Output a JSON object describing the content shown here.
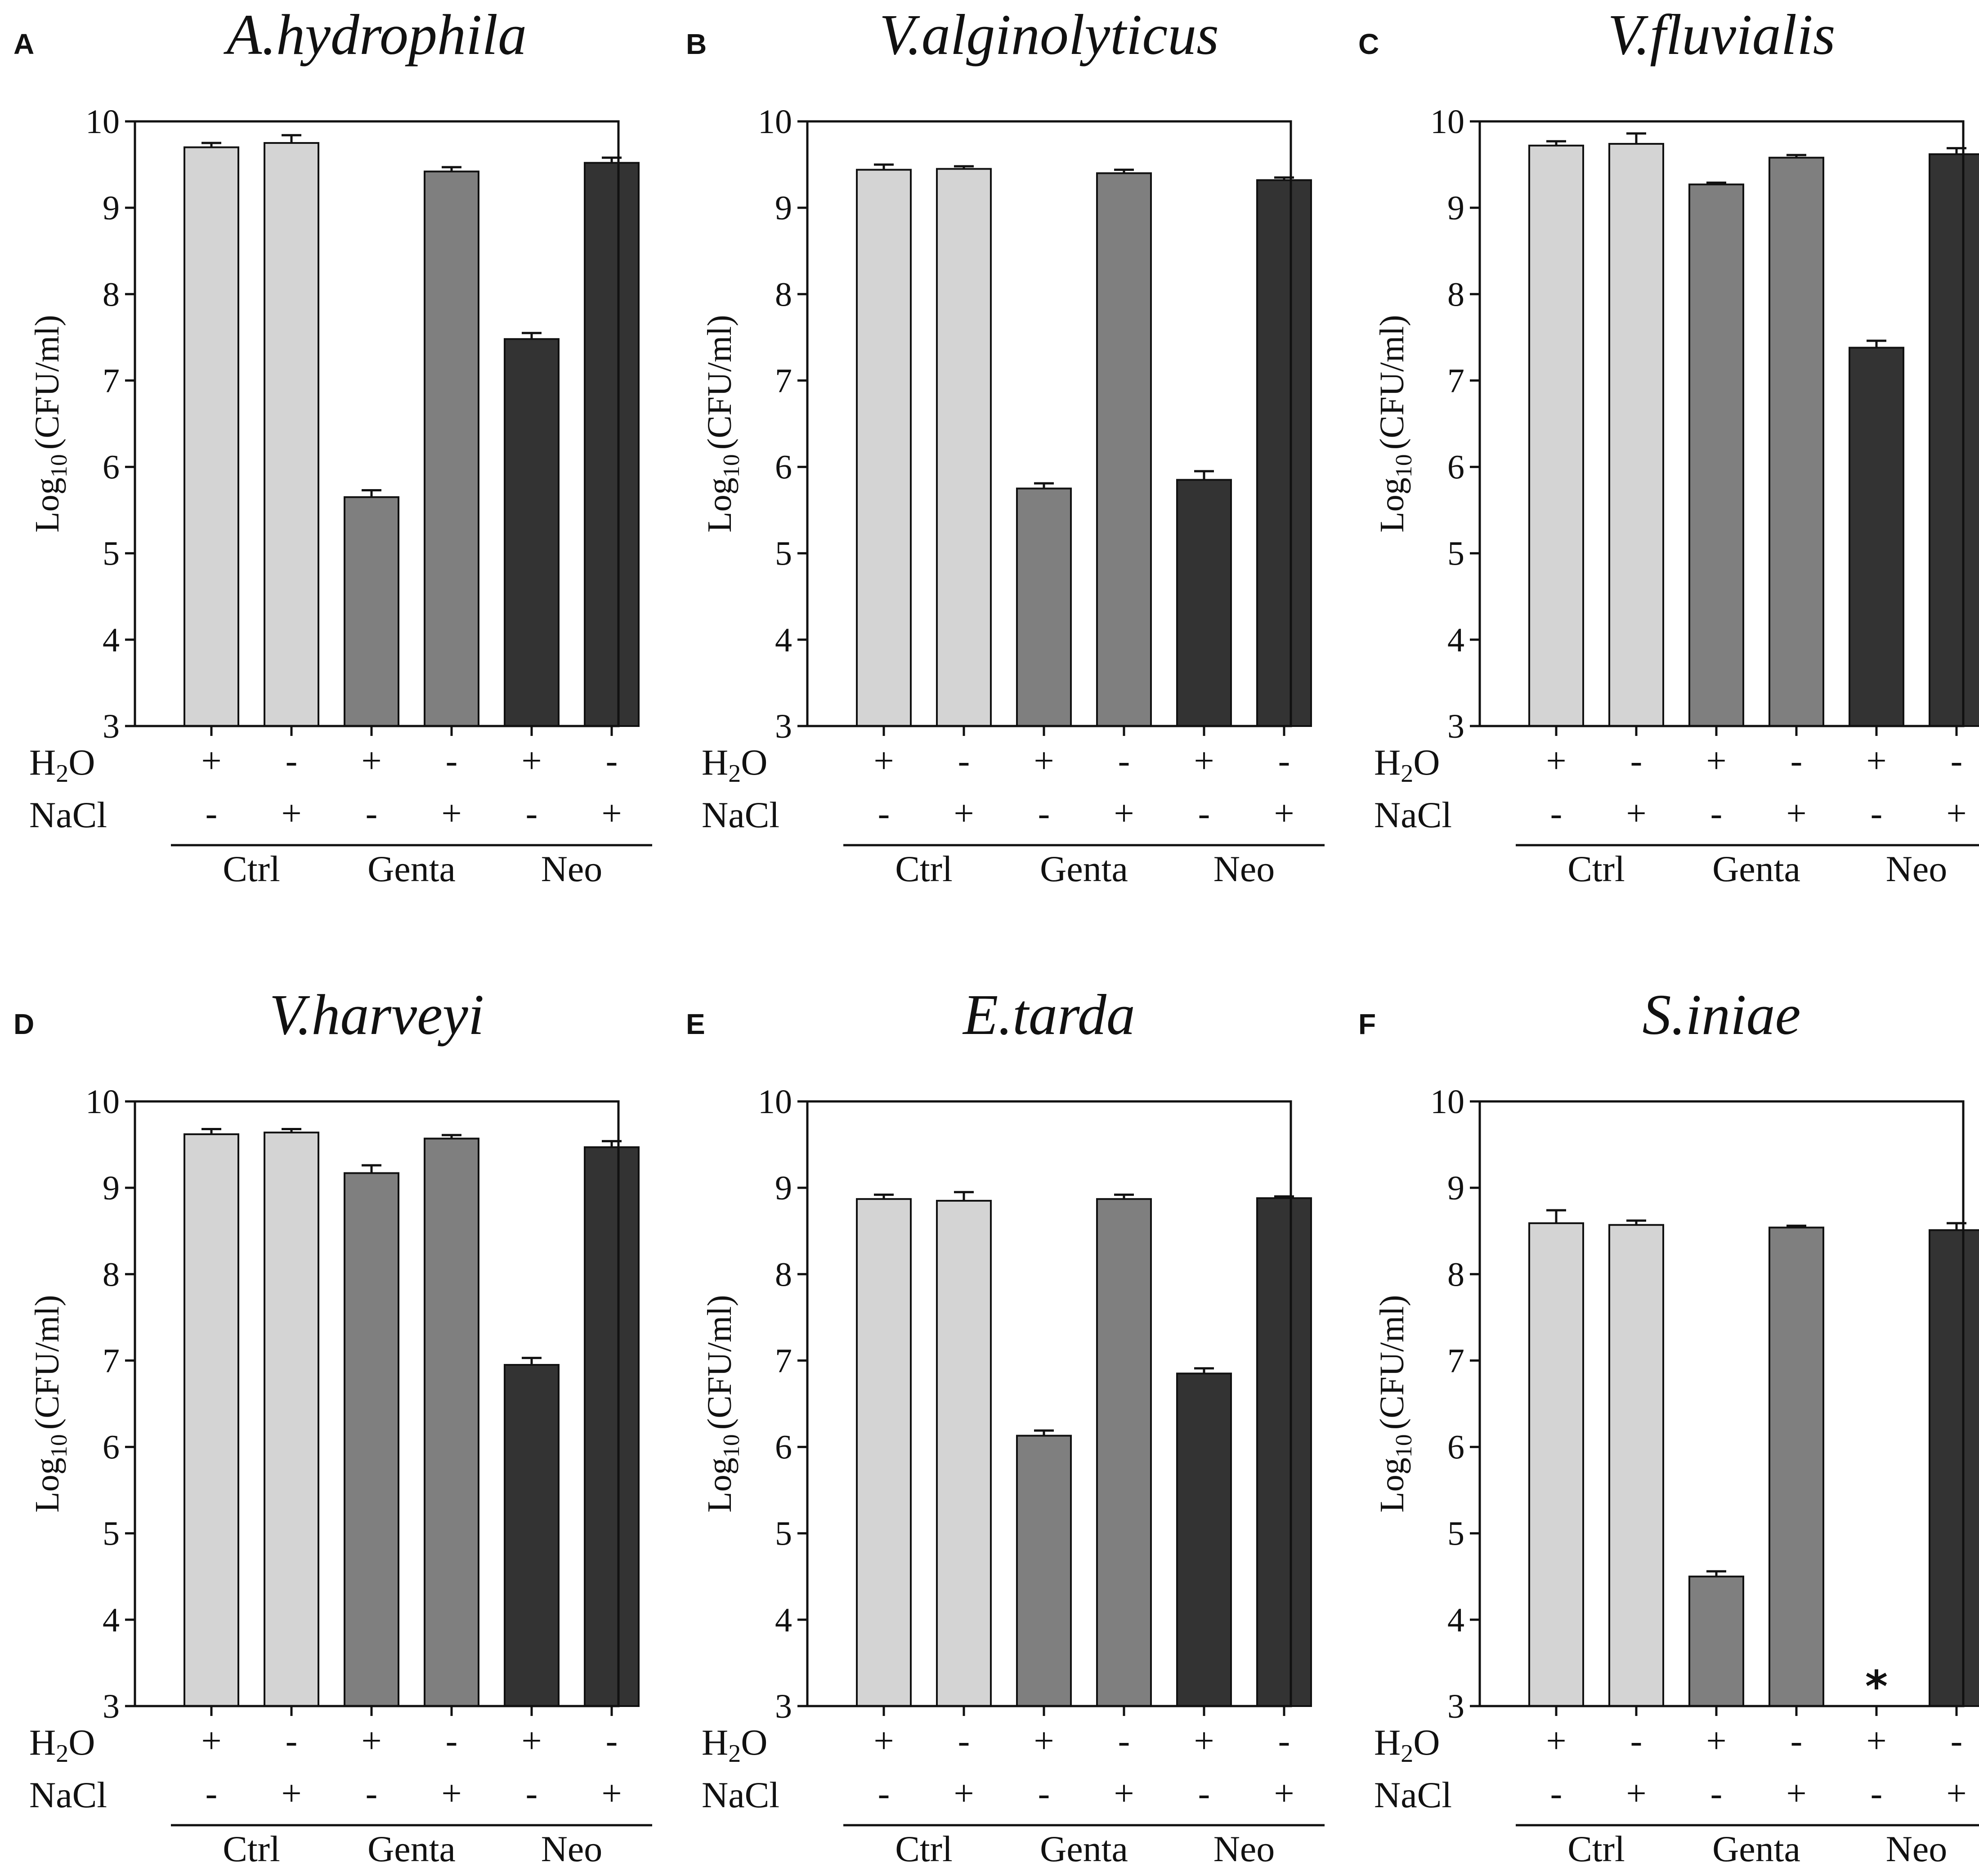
{
  "colors": {
    "ctrl": "#d4d4d4",
    "genta": "#7f7f7f",
    "neo": "#333333",
    "axis": "#111111"
  },
  "chart_data": [
    {
      "panel": "A",
      "type": "bar",
      "title": "A.hydrophila",
      "ylabel": {
        "base": "Log",
        "sub": "10",
        "rest": "(CFU/ml)"
      },
      "ylim": [
        3,
        10
      ],
      "yticks": [
        3,
        4,
        5,
        6,
        7,
        8,
        9,
        10
      ],
      "row_labels": {
        "h2o_base": "H",
        "h2o_sub": "2",
        "h2o_rest": "O",
        "nacl": "NaCl"
      },
      "groups": [
        "Ctrl",
        "Genta",
        "Neo"
      ],
      "bars": [
        {
          "group": "Ctrl",
          "h2o": "+",
          "nacl": "-",
          "value": 9.7,
          "error": 0.05
        },
        {
          "group": "Ctrl",
          "h2o": "-",
          "nacl": "+",
          "value": 9.75,
          "error": 0.09
        },
        {
          "group": "Genta",
          "h2o": "+",
          "nacl": "-",
          "value": 5.65,
          "error": 0.08
        },
        {
          "group": "Genta",
          "h2o": "-",
          "nacl": "+",
          "value": 9.42,
          "error": 0.05
        },
        {
          "group": "Neo",
          "h2o": "+",
          "nacl": "-",
          "value": 7.48,
          "error": 0.07
        },
        {
          "group": "Neo",
          "h2o": "-",
          "nacl": "+",
          "value": 9.52,
          "error": 0.06
        }
      ],
      "annotations": []
    },
    {
      "panel": "B",
      "type": "bar",
      "title": "V.alginolyticus",
      "ylabel": {
        "base": "Log",
        "sub": "10",
        "rest": "(CFU/ml)"
      },
      "ylim": [
        3,
        10
      ],
      "yticks": [
        3,
        4,
        5,
        6,
        7,
        8,
        9,
        10
      ],
      "row_labels": {
        "h2o_base": "H",
        "h2o_sub": "2",
        "h2o_rest": "O",
        "nacl": "NaCl"
      },
      "groups": [
        "Ctrl",
        "Genta",
        "Neo"
      ],
      "bars": [
        {
          "group": "Ctrl",
          "h2o": "+",
          "nacl": "-",
          "value": 9.44,
          "error": 0.06
        },
        {
          "group": "Ctrl",
          "h2o": "-",
          "nacl": "+",
          "value": 9.45,
          "error": 0.03
        },
        {
          "group": "Genta",
          "h2o": "+",
          "nacl": "-",
          "value": 5.75,
          "error": 0.06
        },
        {
          "group": "Genta",
          "h2o": "-",
          "nacl": "+",
          "value": 9.4,
          "error": 0.04
        },
        {
          "group": "Neo",
          "h2o": "+",
          "nacl": "-",
          "value": 5.85,
          "error": 0.1
        },
        {
          "group": "Neo",
          "h2o": "-",
          "nacl": "+",
          "value": 9.32,
          "error": 0.03
        }
      ],
      "annotations": []
    },
    {
      "panel": "C",
      "type": "bar",
      "title": "V.fluvialis",
      "ylabel": {
        "base": "Log",
        "sub": "10",
        "rest": "(CFU/ml)"
      },
      "ylim": [
        3,
        10
      ],
      "yticks": [
        3,
        4,
        5,
        6,
        7,
        8,
        9,
        10
      ],
      "row_labels": {
        "h2o_base": "H",
        "h2o_sub": "2",
        "h2o_rest": "O",
        "nacl": "NaCl"
      },
      "groups": [
        "Ctrl",
        "Genta",
        "Neo"
      ],
      "bars": [
        {
          "group": "Ctrl",
          "h2o": "+",
          "nacl": "-",
          "value": 9.72,
          "error": 0.05
        },
        {
          "group": "Ctrl",
          "h2o": "-",
          "nacl": "+",
          "value": 9.74,
          "error": 0.12
        },
        {
          "group": "Genta",
          "h2o": "+",
          "nacl": "-",
          "value": 9.27,
          "error": 0.02
        },
        {
          "group": "Genta",
          "h2o": "-",
          "nacl": "+",
          "value": 9.58,
          "error": 0.03
        },
        {
          "group": "Neo",
          "h2o": "+",
          "nacl": "-",
          "value": 7.38,
          "error": 0.08
        },
        {
          "group": "Neo",
          "h2o": "-",
          "nacl": "+",
          "value": 9.62,
          "error": 0.07
        }
      ],
      "annotations": []
    },
    {
      "panel": "D",
      "type": "bar",
      "title": "V.harveyi",
      "ylabel": {
        "base": "Log",
        "sub": "10",
        "rest": "(CFU/ml)"
      },
      "ylim": [
        3,
        10
      ],
      "yticks": [
        3,
        4,
        5,
        6,
        7,
        8,
        9,
        10
      ],
      "row_labels": {
        "h2o_base": "H",
        "h2o_sub": "2",
        "h2o_rest": "O",
        "nacl": "NaCl"
      },
      "groups": [
        "Ctrl",
        "Genta",
        "Neo"
      ],
      "bars": [
        {
          "group": "Ctrl",
          "h2o": "+",
          "nacl": "-",
          "value": 9.62,
          "error": 0.06
        },
        {
          "group": "Ctrl",
          "h2o": "-",
          "nacl": "+",
          "value": 9.64,
          "error": 0.04
        },
        {
          "group": "Genta",
          "h2o": "+",
          "nacl": "-",
          "value": 9.17,
          "error": 0.09
        },
        {
          "group": "Genta",
          "h2o": "-",
          "nacl": "+",
          "value": 9.57,
          "error": 0.04
        },
        {
          "group": "Neo",
          "h2o": "+",
          "nacl": "-",
          "value": 6.95,
          "error": 0.08
        },
        {
          "group": "Neo",
          "h2o": "-",
          "nacl": "+",
          "value": 9.47,
          "error": 0.07
        }
      ],
      "annotations": []
    },
    {
      "panel": "E",
      "type": "bar",
      "title": "E.tarda",
      "ylabel": {
        "base": "Log",
        "sub": "10",
        "rest": "(CFU/ml)"
      },
      "ylim": [
        3,
        10
      ],
      "yticks": [
        3,
        4,
        5,
        6,
        7,
        8,
        9,
        10
      ],
      "row_labels": {
        "h2o_base": "H",
        "h2o_sub": "2",
        "h2o_rest": "O",
        "nacl": "NaCl"
      },
      "groups": [
        "Ctrl",
        "Genta",
        "Neo"
      ],
      "bars": [
        {
          "group": "Ctrl",
          "h2o": "+",
          "nacl": "-",
          "value": 8.87,
          "error": 0.05
        },
        {
          "group": "Ctrl",
          "h2o": "-",
          "nacl": "+",
          "value": 8.85,
          "error": 0.1
        },
        {
          "group": "Genta",
          "h2o": "+",
          "nacl": "-",
          "value": 6.13,
          "error": 0.06
        },
        {
          "group": "Genta",
          "h2o": "-",
          "nacl": "+",
          "value": 8.87,
          "error": 0.05
        },
        {
          "group": "Neo",
          "h2o": "+",
          "nacl": "-",
          "value": 6.85,
          "error": 0.06
        },
        {
          "group": "Neo",
          "h2o": "-",
          "nacl": "+",
          "value": 8.88,
          "error": 0.02
        }
      ],
      "annotations": []
    },
    {
      "panel": "F",
      "type": "bar",
      "title": "S.iniae",
      "ylabel": {
        "base": "Log",
        "sub": "10",
        "rest": "(CFU/ml)"
      },
      "ylim": [
        3,
        10
      ],
      "yticks": [
        3,
        4,
        5,
        6,
        7,
        8,
        9,
        10
      ],
      "row_labels": {
        "h2o_base": "H",
        "h2o_sub": "2",
        "h2o_rest": "O",
        "nacl": "NaCl"
      },
      "groups": [
        "Ctrl",
        "Genta",
        "Neo"
      ],
      "bars": [
        {
          "group": "Ctrl",
          "h2o": "+",
          "nacl": "-",
          "value": 8.59,
          "error": 0.15
        },
        {
          "group": "Ctrl",
          "h2o": "-",
          "nacl": "+",
          "value": 8.57,
          "error": 0.05
        },
        {
          "group": "Genta",
          "h2o": "+",
          "nacl": "-",
          "value": 4.5,
          "error": 0.06
        },
        {
          "group": "Genta",
          "h2o": "-",
          "nacl": "+",
          "value": 8.54,
          "error": 0.02
        },
        {
          "group": "Neo",
          "h2o": "+",
          "nacl": "-",
          "value": 3.0,
          "error": 0
        },
        {
          "group": "Neo",
          "h2o": "-",
          "nacl": "+",
          "value": 8.51,
          "error": 0.08
        }
      ],
      "annotations": [
        {
          "bar_index": 4,
          "text": "*"
        }
      ]
    }
  ]
}
